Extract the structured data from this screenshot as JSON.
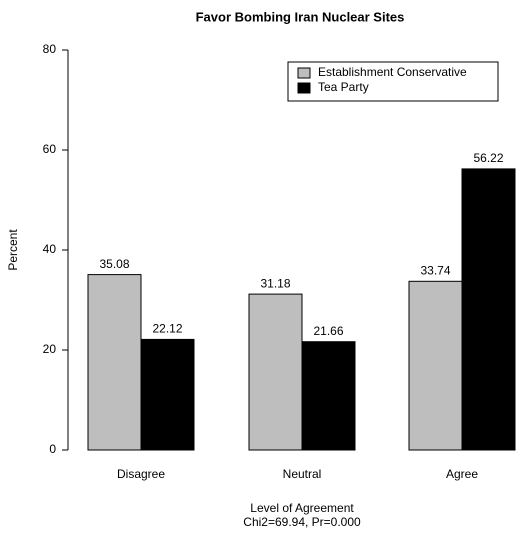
{
  "chart_data": {
    "type": "bar",
    "title": "Favor Bombing Iran Nuclear Sites",
    "ylabel": "Percent",
    "xlabel": "Level of Agreement",
    "subtitle": "Chi2=69.94, Pr=0.000",
    "categories": [
      "Disagree",
      "Neutral",
      "Agree"
    ],
    "series": [
      {
        "name": "Establishment Conservative",
        "color": "#bebebe",
        "values": [
          35.08,
          31.18,
          33.74
        ]
      },
      {
        "name": "Tea Party",
        "color": "#000000",
        "values": [
          22.12,
          21.66,
          56.22
        ]
      }
    ],
    "ylim": [
      0,
      80
    ],
    "yticks": [
      0,
      20,
      40,
      60,
      80
    ],
    "legend": "top-right"
  }
}
